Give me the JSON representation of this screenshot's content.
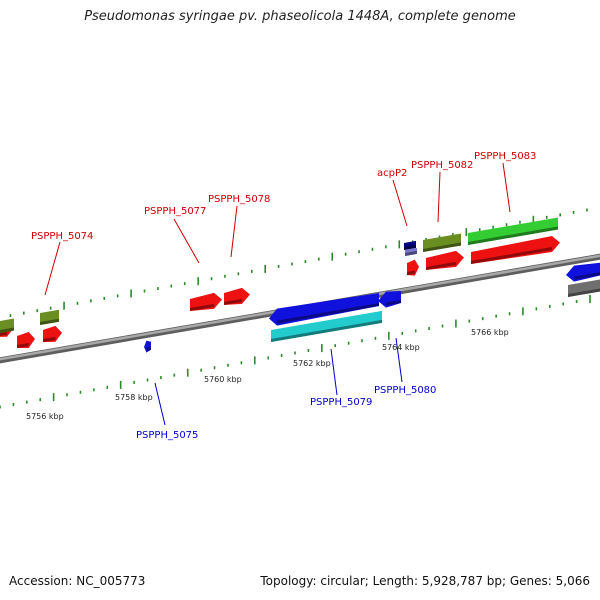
{
  "title": "Pseudomonas syringae pv. phaseolicola 1448A, complete genome",
  "footer": {
    "accession": "Accession: NC_005773",
    "summary": "Topology: circular; Length: 5,928,787 bp; Genes: 5,066"
  },
  "colors": {
    "backbone": "#888888",
    "tick": "#2a8a2a",
    "forward_label": "#cc0000",
    "reverse_label": "#0000cc",
    "red": "#ee1111",
    "olive": "#6b8e23",
    "green": "#33cc33",
    "blue": "#1111dd",
    "cyan": "#22cccc",
    "navy": "#000080",
    "slate": "#7777cc",
    "gray": "#6f6f6f"
  },
  "kbp_labels": [
    "5756 kbp",
    "5758 kbp",
    "5760 kbp",
    "5762 kbp",
    "5764 kbp",
    "5766 kbp"
  ],
  "forward_labels": [
    "PSPPH_5074",
    "PSPPH_5077",
    "PSPPH_5078",
    "acpP2",
    "PSPPH_5082",
    "PSPPH_5083"
  ],
  "reverse_labels": [
    "PSPPH_5075",
    "PSPPH_5079",
    "PSPPH_5080"
  ]
}
